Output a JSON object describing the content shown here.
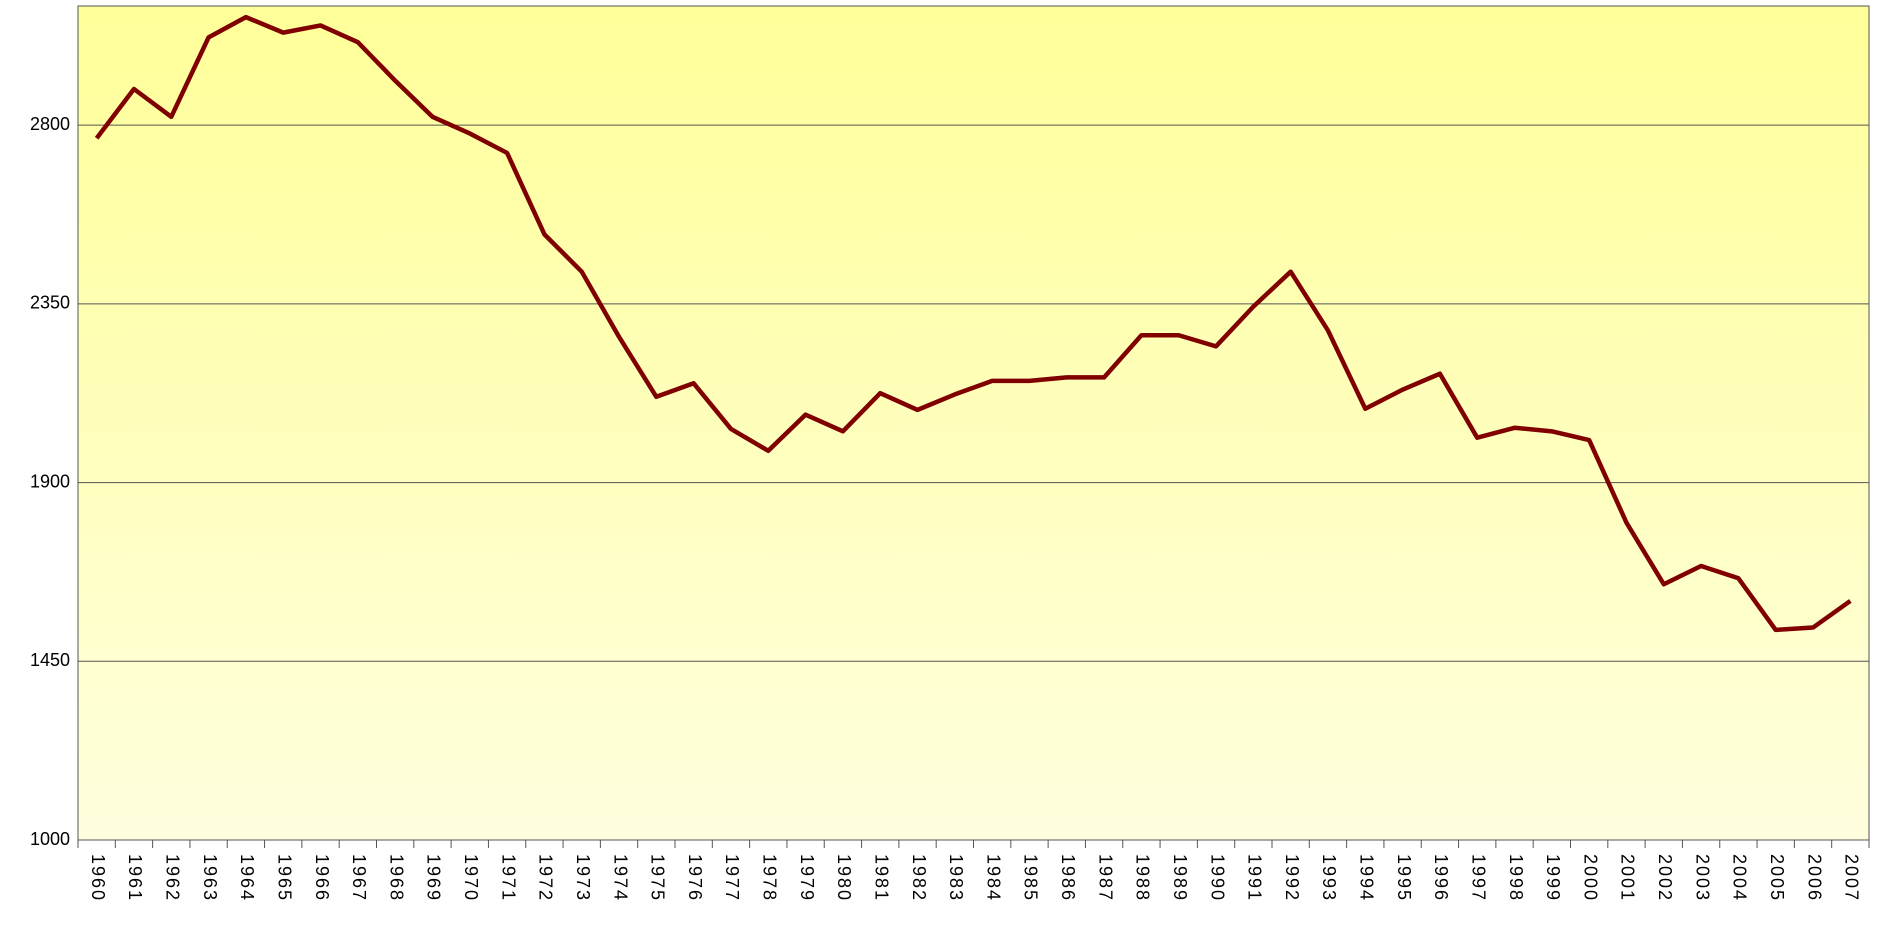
{
  "chart_data": {
    "type": "line",
    "categories": [
      "1960",
      "1961",
      "1962",
      "1963",
      "1964",
      "1965",
      "1966",
      "1967",
      "1968",
      "1969",
      "1970",
      "1971",
      "1972",
      "1973",
      "1974",
      "1975",
      "1976",
      "1977",
      "1978",
      "1979",
      "1980",
      "1981",
      "1982",
      "1983",
      "1984",
      "1985",
      "1986",
      "1987",
      "1988",
      "1989",
      "1990",
      "1991",
      "1992",
      "1993",
      "1994",
      "1995",
      "1996",
      "1997",
      "1998",
      "1999",
      "2000",
      "2001",
      "2002",
      "2003",
      "2004",
      "2005",
      "2006",
      "2007"
    ],
    "values": [
      2767,
      2891,
      2821,
      3021,
      3072,
      3033,
      3051,
      3009,
      2912,
      2821,
      2779,
      2730,
      2525,
      2431,
      2267,
      2116,
      2150,
      2035,
      1980,
      2071,
      2029,
      2125,
      2083,
      2122,
      2156,
      2156,
      2165,
      2165,
      2271,
      2271,
      2243,
      2343,
      2431,
      2283,
      2086,
      2134,
      2174,
      2013,
      2038,
      2029,
      2007,
      1799,
      1644,
      1690,
      1659,
      1529,
      1535,
      1602
    ],
    "color": "#800000",
    "ylim": [
      1000,
      3100
    ],
    "yticks": [
      1000,
      1450,
      1900,
      2350,
      2800
    ],
    "grid": true
  }
}
